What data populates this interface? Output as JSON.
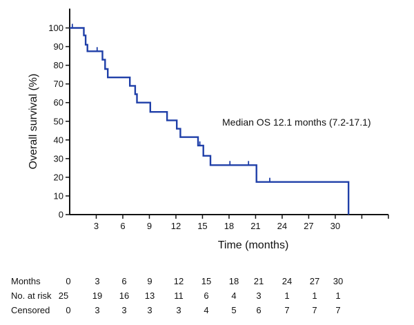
{
  "chart_data": {
    "type": "line",
    "step": true,
    "xlabel": "Time (months)",
    "ylabel": "Overall survival (%)",
    "xlim": [
      0,
      36
    ],
    "ylim": [
      0,
      100
    ],
    "x_ticks": [
      3,
      6,
      9,
      12,
      15,
      18,
      21,
      24,
      27,
      30
    ],
    "y_ticks": [
      0,
      10,
      20,
      30,
      40,
      50,
      60,
      70,
      80,
      90,
      100
    ],
    "grid": false,
    "line_color": "#1f3fa8",
    "annotation": "Median OS 12.1 months (7.2-17.1)",
    "series": [
      {
        "steps": [
          [
            0,
            100
          ],
          [
            1.6,
            100
          ],
          [
            1.6,
            96
          ],
          [
            1.8,
            96
          ],
          [
            1.8,
            91
          ],
          [
            2,
            91
          ],
          [
            2,
            87.5
          ],
          [
            3.7,
            87.5
          ],
          [
            3.7,
            83
          ],
          [
            4,
            83
          ],
          [
            4,
            78
          ],
          [
            4.3,
            78
          ],
          [
            4.3,
            73.5
          ],
          [
            6.8,
            73.5
          ],
          [
            6.8,
            69
          ],
          [
            7.4,
            69
          ],
          [
            7.4,
            64.5
          ],
          [
            7.6,
            64.5
          ],
          [
            7.6,
            60
          ],
          [
            9.1,
            60
          ],
          [
            9.1,
            55
          ],
          [
            11,
            55
          ],
          [
            11,
            50.5
          ],
          [
            12.1,
            50.5
          ],
          [
            12.1,
            46
          ],
          [
            12.5,
            46
          ],
          [
            12.5,
            41.5
          ],
          [
            14.5,
            41.5
          ],
          [
            14.5,
            37
          ],
          [
            15.1,
            37
          ],
          [
            15.1,
            31.5
          ],
          [
            15.9,
            31.5
          ],
          [
            15.9,
            26.5
          ],
          [
            21.1,
            26.5
          ],
          [
            21.1,
            17.5
          ],
          [
            31.5,
            17.5
          ],
          [
            31.5,
            0
          ]
        ],
        "censored": [
          [
            0.3,
            100
          ],
          [
            3.1,
            87.5
          ],
          [
            14.7,
            37
          ],
          [
            18.1,
            26.5
          ],
          [
            20.2,
            26.5
          ],
          [
            22.6,
            17.5
          ]
        ]
      }
    ],
    "risk_table": {
      "rows": [
        {
          "label": "Months",
          "values": [
            "0",
            "3",
            "6",
            "9",
            "12",
            "15",
            "18",
            "21",
            "24",
            "27",
            "30"
          ]
        },
        {
          "label": "No. at risk",
          "values": [
            "25",
            "19",
            "16",
            "13",
            "11",
            "6",
            "4",
            "3",
            "1",
            "1",
            "1"
          ]
        },
        {
          "label": "Censored",
          "values": [
            "0",
            "3",
            "3",
            "3",
            "3",
            "4",
            "5",
            "6",
            "7",
            "7",
            "7"
          ]
        }
      ]
    }
  }
}
